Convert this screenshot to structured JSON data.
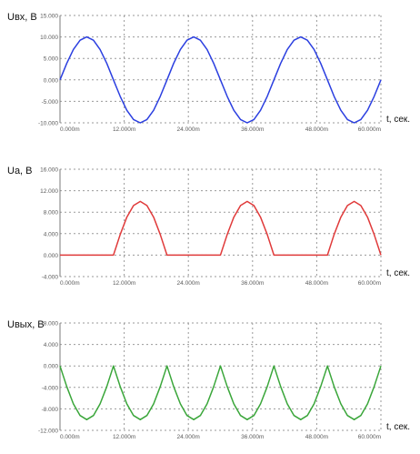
{
  "chart_data": [
    {
      "type": "line",
      "ylabel": "Uвх, В",
      "xlabel": "t, сек.",
      "xlim": [
        0,
        60
      ],
      "ylim": [
        -10,
        15
      ],
      "x_ticks": [
        "0.000m",
        "12.000m",
        "24.000m",
        "36.000m",
        "48.000m",
        "60.000m"
      ],
      "y_ticks": [
        "-10.000",
        "-5.000",
        "0.000",
        "5.000",
        "10.000",
        "15.000"
      ],
      "grid": true,
      "color": "#2b3fe0",
      "series": [
        {
          "x": [
            0,
            1.25,
            2.5,
            3.75,
            5,
            6.25,
            7.5,
            8.75,
            10,
            11.25,
            12.5,
            13.75,
            15,
            16.25,
            17.5,
            18.75,
            20,
            21.25,
            22.5,
            23.75,
            25,
            26.25,
            27.5,
            28.75,
            30,
            31.25,
            32.5,
            33.75,
            35,
            36.25,
            37.5,
            38.75,
            40,
            41.25,
            42.5,
            43.75,
            45,
            46.25,
            47.5,
            48.75,
            50,
            51.25,
            52.5,
            53.75,
            55,
            56.25,
            57.5,
            58.75,
            60
          ],
          "y": [
            0,
            3.83,
            7.07,
            9.24,
            10,
            9.24,
            7.07,
            3.83,
            0,
            -3.83,
            -7.07,
            -9.24,
            -10,
            -9.24,
            -7.07,
            -3.83,
            0,
            3.83,
            7.07,
            9.24,
            10,
            9.24,
            7.07,
            3.83,
            0,
            -3.83,
            -7.07,
            -9.24,
            -10,
            -9.24,
            -7.07,
            -3.83,
            0,
            3.83,
            7.07,
            9.24,
            10,
            9.24,
            7.07,
            3.83,
            0,
            -3.83,
            -7.07,
            -9.24,
            -10,
            -9.24,
            -7.07,
            -3.83,
            0
          ]
        }
      ]
    },
    {
      "type": "line",
      "ylabel": "Ua, В",
      "xlabel": "t, сек.",
      "xlim": [
        0,
        60
      ],
      "ylim": [
        -4,
        16
      ],
      "x_ticks": [
        "0.000m",
        "12.000m",
        "24.000m",
        "36.000m",
        "48.000m",
        "60.000m"
      ],
      "y_ticks": [
        "-4.000",
        "0.000",
        "4.000",
        "8.000",
        "12.000",
        "16.000"
      ],
      "grid": true,
      "color": "#e03a3a",
      "series": [
        {
          "x": [
            0,
            10,
            11.25,
            12.5,
            13.75,
            15,
            16.25,
            17.5,
            18.75,
            20,
            30,
            31.25,
            32.5,
            33.75,
            35,
            36.25,
            37.5,
            38.75,
            40,
            50,
            51.25,
            52.5,
            53.75,
            55,
            56.25,
            57.5,
            58.75,
            60
          ],
          "y": [
            0,
            0,
            3.83,
            7.07,
            9.24,
            10,
            9.24,
            7.07,
            3.83,
            0,
            0,
            3.83,
            7.07,
            9.24,
            10,
            9.24,
            7.07,
            3.83,
            0,
            0,
            3.83,
            7.07,
            9.24,
            10,
            9.24,
            7.07,
            3.83,
            0
          ]
        }
      ]
    },
    {
      "type": "line",
      "ylabel": "Uвых, В",
      "xlabel": "t, сек.",
      "xlim": [
        0,
        60
      ],
      "ylim": [
        -12,
        8
      ],
      "x_ticks": [
        "0.000m",
        "12.000m",
        "24.000m",
        "36.000m",
        "48.000m",
        "60.000m"
      ],
      "y_ticks": [
        "-12.000",
        "-8.000",
        "-4.000",
        "0.000",
        "4.000",
        "8.000"
      ],
      "grid": true,
      "color": "#3aa63a",
      "series": [
        {
          "x": [
            0,
            1.25,
            2.5,
            3.75,
            5,
            6.25,
            7.5,
            8.75,
            10,
            11.25,
            12.5,
            13.75,
            15,
            16.25,
            17.5,
            18.75,
            20,
            21.25,
            22.5,
            23.75,
            25,
            26.25,
            27.5,
            28.75,
            30,
            31.25,
            32.5,
            33.75,
            35,
            36.25,
            37.5,
            38.75,
            40,
            41.25,
            42.5,
            43.75,
            45,
            46.25,
            47.5,
            48.75,
            50,
            51.25,
            52.5,
            53.75,
            55,
            56.25,
            57.5,
            58.75,
            60
          ],
          "y": [
            0,
            -3.83,
            -7.07,
            -9.24,
            -10,
            -9.24,
            -7.07,
            -3.83,
            0,
            -3.83,
            -7.07,
            -9.24,
            -10,
            -9.24,
            -7.07,
            -3.83,
            0,
            -3.83,
            -7.07,
            -9.24,
            -10,
            -9.24,
            -7.07,
            -3.83,
            0,
            -3.83,
            -7.07,
            -9.24,
            -10,
            -9.24,
            -7.07,
            -3.83,
            0,
            -3.83,
            -7.07,
            -9.24,
            -10,
            -9.24,
            -7.07,
            -3.83,
            0,
            -3.83,
            -7.07,
            -9.24,
            -10,
            -9.24,
            -7.07,
            -3.83,
            0
          ]
        }
      ]
    }
  ]
}
